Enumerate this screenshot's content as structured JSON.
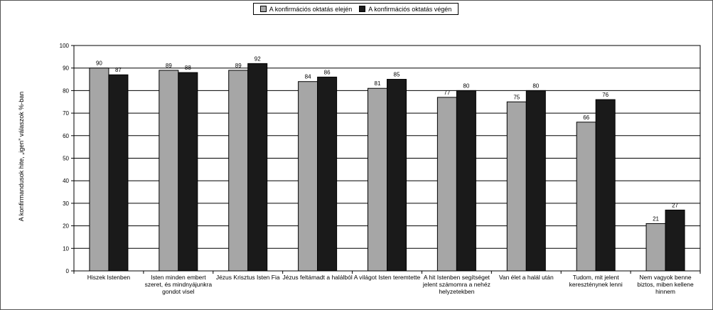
{
  "chart_data": {
    "type": "bar",
    "ylabel": "A konfirmandusok hite, „igen” válaszok %-ban",
    "xlabel": "",
    "ylim": [
      0,
      100
    ],
    "yticks": [
      0,
      10,
      20,
      30,
      40,
      50,
      60,
      70,
      80,
      90,
      100
    ],
    "grid": true,
    "legend_position": "top-center",
    "categories": [
      [
        "Hiszek Istenben"
      ],
      [
        "Isten minden embert",
        "szeret, és mindnyájunkra",
        "gondot visel"
      ],
      [
        "Jézus Krisztus Isten Fia"
      ],
      [
        "Jézus feltámadt a halálból"
      ],
      [
        "A világot Isten teremtette"
      ],
      [
        "A hit Istenben segítséget",
        "jelent számomra a nehéz",
        "helyzetekben"
      ],
      [
        "Van élet a halál után"
      ],
      [
        "Tudom, mit jelent",
        "kereszténynek lenni"
      ],
      [
        "Nem vagyok benne",
        "biztos, miben kellene",
        "hinnem"
      ]
    ],
    "series": [
      {
        "name": "A konfirmációs oktatás elején",
        "color": "#a6a6a6",
        "values": [
          90,
          89,
          89,
          84,
          81,
          77,
          75,
          66,
          21
        ]
      },
      {
        "name": "A konfirmációs oktatás végén",
        "color": "#1a1a1a",
        "values": [
          87,
          88,
          92,
          86,
          85,
          80,
          80,
          76,
          27
        ]
      }
    ]
  }
}
